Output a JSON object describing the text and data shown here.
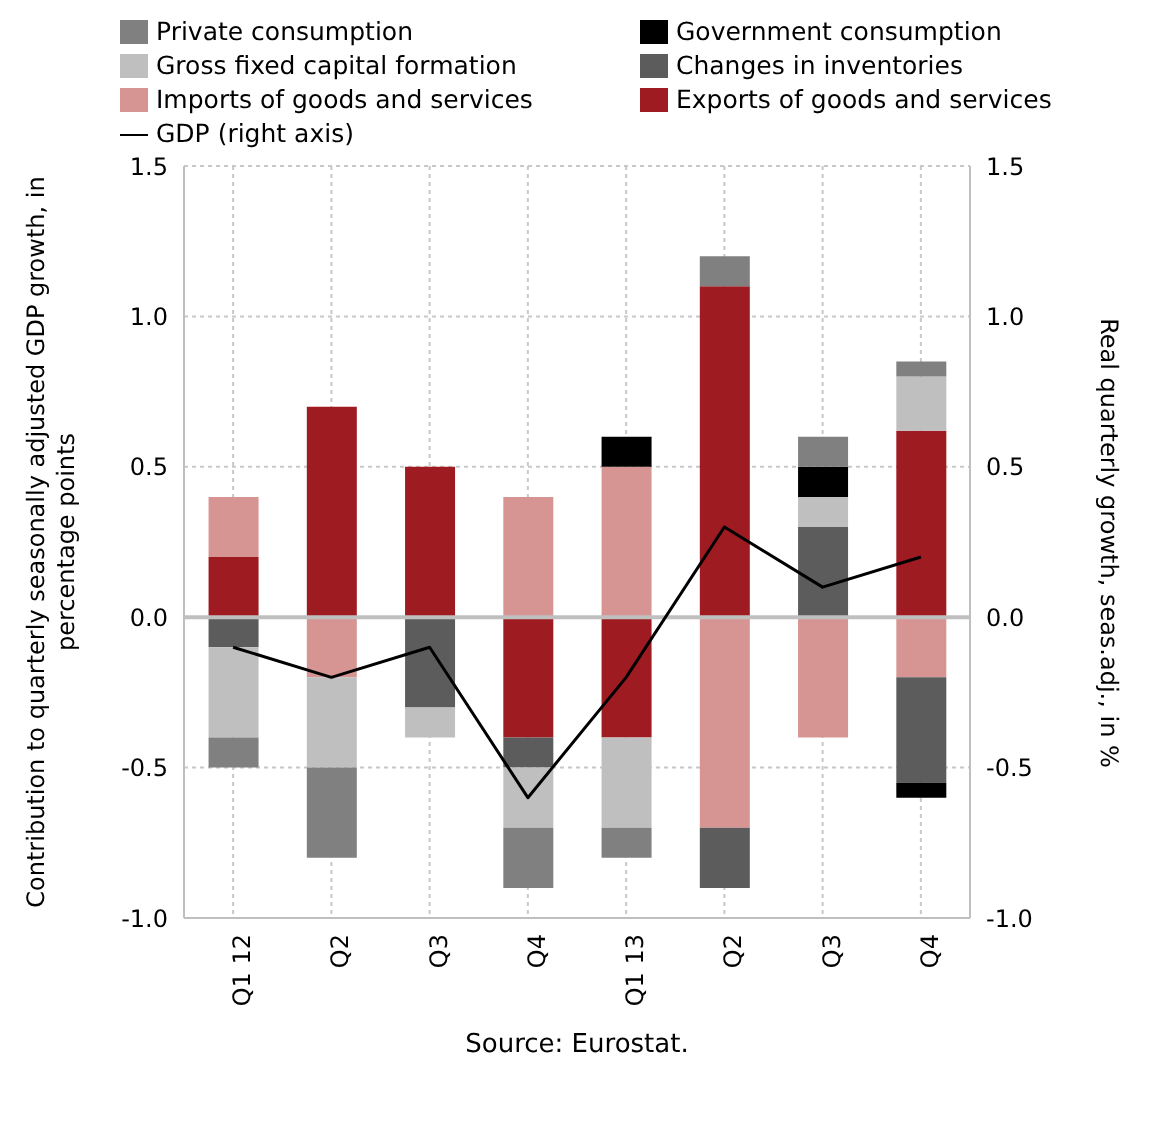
{
  "chart_data": {
    "type": "bar",
    "stacked": true,
    "categories": [
      "Q1 12",
      "Q2",
      "Q3",
      "Q4",
      "Q1 13",
      "Q2",
      "Q3",
      "Q4"
    ],
    "series": [
      {
        "name": "Exports of goods and services",
        "color": "#9e1b21",
        "values": [
          0.2,
          0.7,
          0.5,
          -0.4,
          -0.4,
          1.1,
          null,
          0.62
        ]
      },
      {
        "name": "Imports of goods and services",
        "color": "#d69593",
        "values": [
          0.2,
          -0.2,
          null,
          0.4,
          0.5,
          -0.7,
          -0.4,
          -0.2
        ]
      },
      {
        "name": "Changes in inventories",
        "color": "#5c5c5c",
        "values": [
          -0.1,
          null,
          -0.3,
          -0.1,
          null,
          -0.2,
          0.3,
          -0.35
        ]
      },
      {
        "name": "Gross fixed capital formation",
        "color": "#bfbfbf",
        "values": [
          -0.3,
          -0.3,
          -0.1,
          -0.2,
          -0.3,
          null,
          0.1,
          0.18
        ]
      },
      {
        "name": "Government consumption",
        "color": "#000000",
        "values": [
          null,
          null,
          null,
          null,
          0.1,
          null,
          0.1,
          -0.05
        ]
      },
      {
        "name": "Private consumption",
        "color": "#808080",
        "values": [
          -0.1,
          -0.3,
          null,
          -0.2,
          -0.1,
          0.1,
          0.1,
          0.05
        ]
      },
      {
        "name": "GDP (right axis)",
        "type": "line",
        "axis": "y2",
        "color": "#000000",
        "values": [
          -0.1,
          -0.2,
          -0.1,
          -0.6,
          -0.2,
          0.3,
          0.1,
          0.2
        ]
      }
    ],
    "ylabel": "Contribution to quarterly seasonally adjusted GDP growth, in percentage points",
    "y2label": "Real quarterly growth, seas.adj., in %",
    "ylim": [
      -1,
      1.5
    ],
    "yticks": [
      {
        "value": -1,
        "label": "-1.0"
      },
      {
        "value": -0.5,
        "label": "-0.5"
      },
      {
        "value": 0,
        "label": "0.0"
      },
      {
        "value": 0.5,
        "label": "0.5"
      },
      {
        "value": 1,
        "label": "1.0"
      },
      {
        "value": 1.5,
        "label": "1.5"
      }
    ],
    "y2lim": [
      -1,
      1.5
    ],
    "y2ticks": [
      {
        "value": -1,
        "label": "-1.0"
      },
      {
        "value": -0.5,
        "label": "-0.5"
      },
      {
        "value": 0,
        "label": "0.0"
      },
      {
        "value": 0.5,
        "label": "0.5"
      },
      {
        "value": 1,
        "label": "1.0"
      },
      {
        "value": 1.5,
        "label": "1.5"
      }
    ],
    "ref_lines": [
      {
        "axis": "y",
        "value": 0,
        "color": "#bfbfbf"
      }
    ],
    "grid": true,
    "legend": "top",
    "marker": "none",
    "line_style": "solid",
    "annotations": [
      "Source: Eurostat."
    ]
  }
}
